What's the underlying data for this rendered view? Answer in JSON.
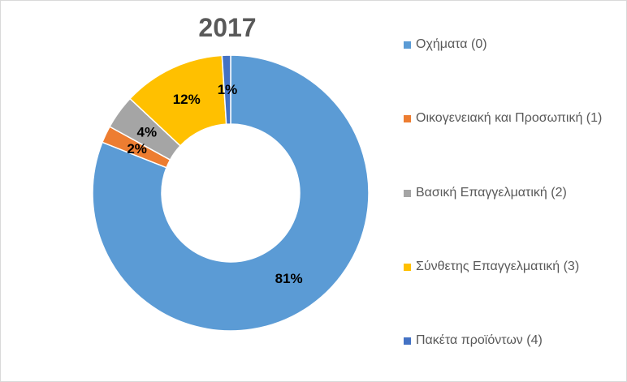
{
  "chart_data": {
    "type": "pie",
    "variant": "doughnut",
    "title": "2017",
    "categories": [
      "Οχήματα (0)",
      "Οικογενειακή και Προσωπική (1)",
      "Βασική Επαγγελματική (2)",
      "Σύνθετης Επαγγελματική (3)",
      "Πακέτα προϊόντων (4)"
    ],
    "values": [
      81,
      2,
      4,
      12,
      1
    ],
    "value_labels": [
      "81%",
      "2%",
      "4%",
      "12%",
      "1%"
    ],
    "colors": [
      "#5B9BD5",
      "#ED7D31",
      "#A5A5A5",
      "#FFC000",
      "#4472C4"
    ],
    "legend_position": "right",
    "start_angle": "top, clockwise"
  }
}
